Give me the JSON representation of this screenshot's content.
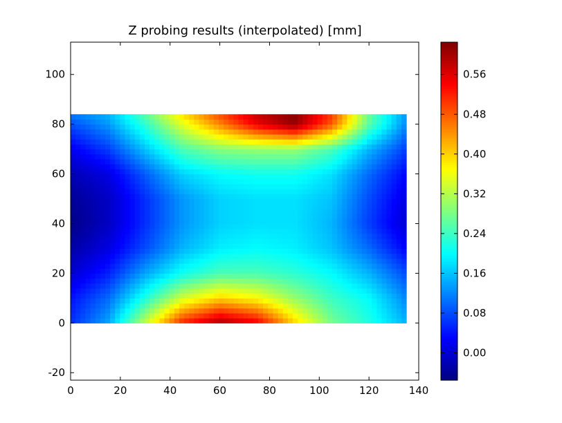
{
  "chart_data": [
    {
      "type": "heatmap",
      "title": "Z probing results (interpolated) [mm]",
      "xlabel": "",
      "ylabel": "",
      "xlim": [
        0,
        140
      ],
      "ylim": [
        -23,
        113
      ],
      "x_ticks": [
        0,
        20,
        40,
        60,
        80,
        100,
        120,
        140
      ],
      "y_ticks": [
        -20,
        0,
        20,
        40,
        60,
        80,
        100
      ],
      "data_extent": {
        "x": [
          0,
          135
        ],
        "y": [
          0,
          84
        ]
      },
      "colormap": "jet",
      "value_range": [
        -0.055,
        0.625
      ],
      "grid": false,
      "field": {
        "x": [
          0,
          15,
          30,
          45,
          60,
          75,
          90,
          105,
          120,
          135
        ],
        "y": [
          0,
          10,
          20,
          30,
          40,
          50,
          60,
          70,
          80,
          84
        ],
        "z": [
          [
            0.06,
            0.14,
            0.33,
            0.52,
            0.6,
            0.55,
            0.4,
            0.28,
            0.22,
            0.15
          ],
          [
            0.04,
            0.1,
            0.22,
            0.34,
            0.4,
            0.37,
            0.3,
            0.24,
            0.2,
            0.12
          ],
          [
            0.0,
            0.05,
            0.14,
            0.21,
            0.25,
            0.25,
            0.23,
            0.2,
            0.15,
            0.08
          ],
          [
            -0.03,
            0.01,
            0.08,
            0.15,
            0.19,
            0.2,
            0.19,
            0.16,
            0.1,
            0.03
          ],
          [
            -0.05,
            -0.01,
            0.06,
            0.13,
            0.17,
            0.18,
            0.18,
            0.15,
            0.07,
            0.0
          ],
          [
            -0.04,
            -0.01,
            0.06,
            0.13,
            0.17,
            0.18,
            0.18,
            0.16,
            0.08,
            0.01
          ],
          [
            -0.02,
            0.01,
            0.09,
            0.17,
            0.2,
            0.21,
            0.21,
            0.18,
            0.1,
            0.03
          ],
          [
            0.02,
            0.07,
            0.16,
            0.25,
            0.29,
            0.3,
            0.3,
            0.25,
            0.15,
            0.07
          ],
          [
            0.08,
            0.13,
            0.23,
            0.35,
            0.45,
            0.55,
            0.61,
            0.48,
            0.26,
            0.12
          ],
          [
            0.11,
            0.15,
            0.26,
            0.39,
            0.49,
            0.58,
            0.62,
            0.5,
            0.27,
            0.13
          ]
        ]
      }
    },
    {
      "type": "colorbar",
      "range": [
        -0.055,
        0.625
      ],
      "ticks": [
        0.0,
        0.08,
        0.16,
        0.24,
        0.32,
        0.4,
        0.48,
        0.56
      ],
      "tick_labels": [
        "0.00",
        "0.08",
        "0.16",
        "0.24",
        "0.32",
        "0.40",
        "0.48",
        "0.56"
      ]
    }
  ]
}
